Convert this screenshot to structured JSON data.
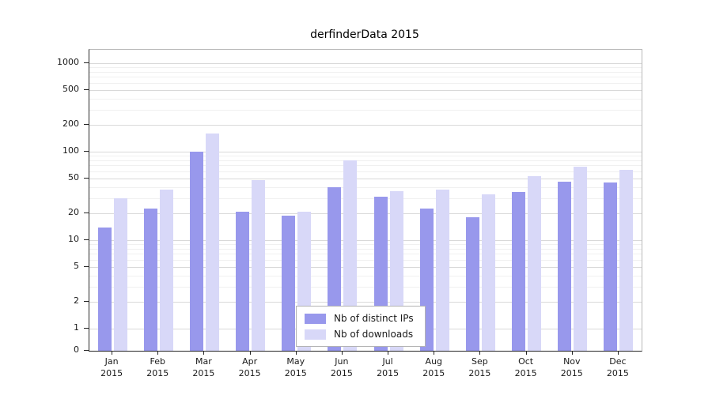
{
  "figure": {
    "title": "derfinderData 2015"
  },
  "chart_data": {
    "type": "bar",
    "title": "derfinderData 2015",
    "categories": [
      "Jan",
      "Feb",
      "Mar",
      "Apr",
      "May",
      "Jun",
      "Jul",
      "Aug",
      "Sep",
      "Oct",
      "Nov",
      "Dec"
    ],
    "year": "2015",
    "series": [
      {
        "name": "Nb of distinct IPs",
        "color": "#9898ec",
        "values": [
          14,
          23,
          100,
          21,
          19,
          40,
          31,
          23,
          18,
          35,
          46,
          45
        ]
      },
      {
        "name": "Nb of downloads",
        "color": "#d8d8f8",
        "values": [
          30,
          37,
          160,
          48,
          21,
          80,
          36,
          37,
          33,
          53,
          68,
          62
        ]
      }
    ],
    "yticks": [
      0,
      1,
      2,
      5,
      10,
      20,
      50,
      100,
      200,
      500,
      1000
    ],
    "scale": "log",
    "ylim": [
      0,
      1300
    ],
    "grid": true,
    "legend_position": "bottom-center"
  }
}
